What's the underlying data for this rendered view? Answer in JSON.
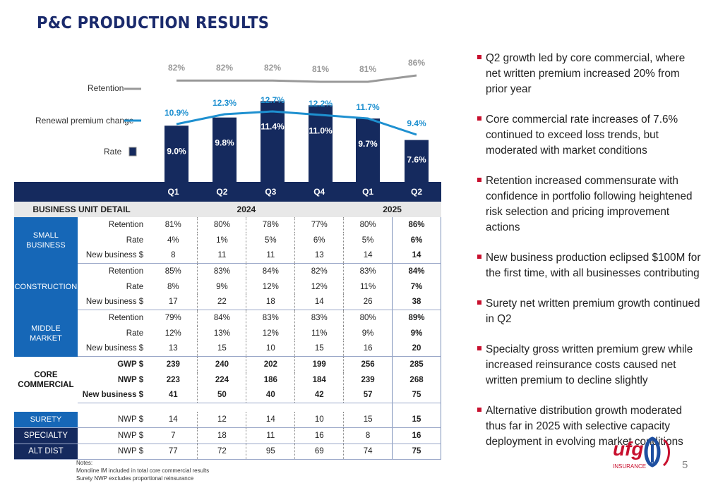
{
  "title": "P&C PRODUCTION RESULTS",
  "legend": {
    "retention": "Retention",
    "renewal": "Renewal premium change",
    "rate": "Rate"
  },
  "chart_data": {
    "type": "bar",
    "categories": [
      "Q1",
      "Q2",
      "Q3",
      "Q4",
      "Q1",
      "Q2"
    ],
    "series": [
      {
        "name": "Rate",
        "type": "bar",
        "values": [
          9.0,
          9.8,
          11.4,
          11.0,
          9.7,
          7.6
        ],
        "labels": [
          "9.0%",
          "9.8%",
          "11.4%",
          "11.0%",
          "9.7%",
          "7.6%"
        ],
        "color": "#152a5e"
      },
      {
        "name": "Renewal premium change",
        "type": "line",
        "values": [
          10.9,
          12.3,
          12.7,
          12.2,
          11.7,
          9.4
        ],
        "labels": [
          "10.9%",
          "12.3%",
          "12.7%",
          "12.2%",
          "11.7%",
          "9.4%"
        ],
        "color": "#1e90d0"
      },
      {
        "name": "Retention",
        "type": "line",
        "values": [
          82,
          82,
          82,
          81,
          81,
          86
        ],
        "labels": [
          "82%",
          "82%",
          "82%",
          "81%",
          "81%",
          "86%"
        ],
        "color": "#999999"
      }
    ]
  },
  "table": {
    "quarters": [
      "Q1",
      "Q2",
      "Q3",
      "Q4",
      "Q1",
      "Q2"
    ],
    "detail_label": "BUSINESS UNIT DETAIL",
    "year1": "2024",
    "year2": "2025",
    "groups": [
      {
        "unit": "SMALL\nBUSINESS",
        "style": "unit",
        "rows": [
          {
            "metric": "Retention",
            "values": [
              "81%",
              "80%",
              "78%",
              "77%",
              "80%",
              "86%"
            ]
          },
          {
            "metric": "Rate",
            "values": [
              "4%",
              "1%",
              "5%",
              "6%",
              "5%",
              "6%"
            ]
          },
          {
            "metric": "New business $",
            "values": [
              "8",
              "11",
              "11",
              "13",
              "14",
              "14"
            ]
          }
        ]
      },
      {
        "unit": "CONSTRUCTION",
        "style": "unit",
        "rows": [
          {
            "metric": "Retention",
            "values": [
              "85%",
              "83%",
              "84%",
              "82%",
              "83%",
              "84%"
            ]
          },
          {
            "metric": "Rate",
            "values": [
              "8%",
              "9%",
              "12%",
              "12%",
              "11%",
              "7%"
            ]
          },
          {
            "metric": "New business $",
            "values": [
              "17",
              "22",
              "18",
              "14",
              "26",
              "38"
            ]
          }
        ]
      },
      {
        "unit": "MIDDLE\nMARKET",
        "style": "unit",
        "rows": [
          {
            "metric": "Retention",
            "values": [
              "79%",
              "84%",
              "83%",
              "83%",
              "80%",
              "89%"
            ]
          },
          {
            "metric": "Rate",
            "values": [
              "12%",
              "13%",
              "12%",
              "11%",
              "9%",
              "9%"
            ]
          },
          {
            "metric": "New business $",
            "values": [
              "13",
              "15",
              "10",
              "15",
              "16",
              "20"
            ]
          }
        ]
      },
      {
        "unit": "CORE\nCOMMERCIAL",
        "style": "unit-core",
        "bold": true,
        "rows": [
          {
            "metric": "GWP $",
            "values": [
              "239",
              "240",
              "202",
              "199",
              "256",
              "285"
            ]
          },
          {
            "metric": "NWP $",
            "values": [
              "223",
              "224",
              "186",
              "184",
              "239",
              "268"
            ]
          },
          {
            "metric": "New business $",
            "values": [
              "41",
              "50",
              "40",
              "42",
              "57",
              "75"
            ]
          }
        ]
      }
    ],
    "extra": [
      {
        "unit": "SURETY",
        "style": "unit",
        "metric": "NWP $",
        "values": [
          "14",
          "12",
          "14",
          "10",
          "15",
          "15"
        ]
      },
      {
        "unit": "SPECIALTY",
        "style": "unit-dark",
        "metric": "NWP $",
        "values": [
          "7",
          "18",
          "11",
          "16",
          "8",
          "16"
        ]
      },
      {
        "unit": "ALT DIST",
        "style": "unit-dark",
        "metric": "NWP $",
        "values": [
          "77",
          "72",
          "95",
          "69",
          "74",
          "75"
        ]
      }
    ]
  },
  "bullets": [
    "Q2 growth led by core commercial, where net written premium increased 20% from prior year",
    "Core commercial rate increases of 7.6% continued to exceed loss trends, but moderated with market conditions",
    "Retention increased commensurate with confidence in portfolio following heightened risk selection and pricing improvement actions",
    "New business production eclipsed $100M for the first time, with all businesses contributing",
    "Surety net written premium growth continued in Q2",
    "Specialty gross written premium grew while increased reinsurance costs caused net written premium to decline slightly",
    "Alternative distribution growth moderated thus far in 2025 with selective capacity deployment in evolving market conditions"
  ],
  "notes": {
    "heading": "Notes:",
    "lines": [
      "Monoline IM included in total core commercial results",
      "Surety NWP excludes proportional reinsurance"
    ]
  },
  "logo": {
    "text": "ufg",
    "sub": "INSURANCE",
    "color": "#c8102e",
    "mark_color": "#1e4fa0"
  },
  "page_number": "5"
}
